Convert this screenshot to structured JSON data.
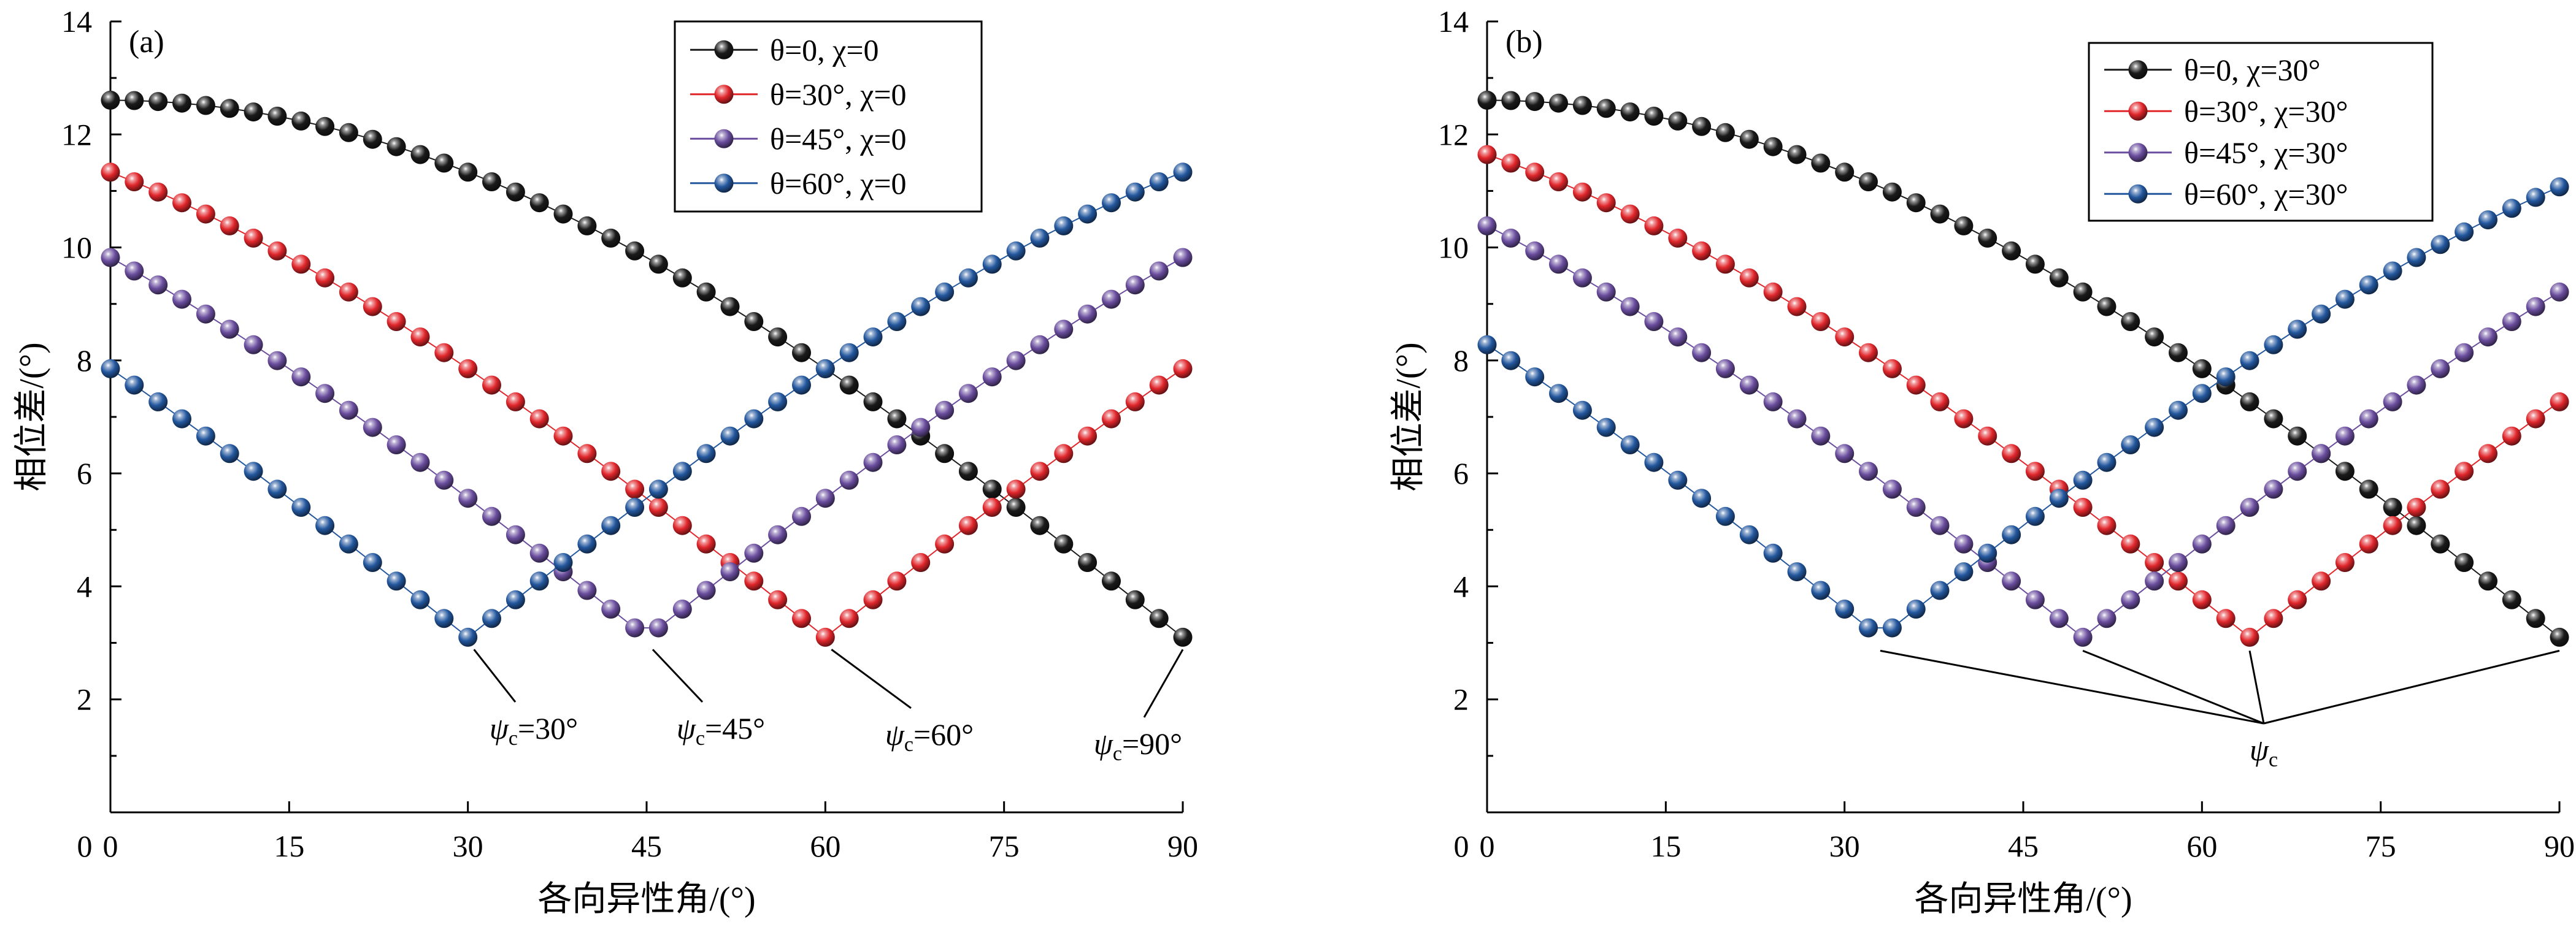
{
  "colors": {
    "black": "#1a1a1a",
    "red": "#e0262b",
    "purple": "#6a4d9e",
    "blue": "#23579e"
  },
  "chart_data": [
    {
      "panel": "(a)",
      "type": "scatter",
      "xlabel": "各向异性角/(°)",
      "ylabel": "相位差/(°)",
      "xlim": [
        0,
        90
      ],
      "ylim": [
        0,
        14
      ],
      "xticks": [
        "0",
        "15",
        "30",
        "45",
        "60",
        "75",
        "90"
      ],
      "yticks": [
        "2",
        "4",
        "6",
        "8",
        "10",
        "12",
        "14"
      ],
      "legend_position": "top-right",
      "series": [
        {
          "name": "θ=0, χ=0",
          "color_key": "black",
          "psi_c": 90
        },
        {
          "name": "θ=30°, χ=0",
          "color_key": "red",
          "psi_c": 60
        },
        {
          "name": "θ=45°, χ=0",
          "color_key": "purple",
          "psi_c": 45
        },
        {
          "name": "θ=60°, χ=0",
          "color_key": "blue",
          "psi_c": 30
        }
      ],
      "annotations": [
        {
          "text": "ψc=30°",
          "x": 30,
          "y": 3.1
        },
        {
          "text": "ψc=45°",
          "x": 45,
          "y": 3.1
        },
        {
          "text": "ψc=60°",
          "x": 60,
          "y": 3.1
        },
        {
          "text": "ψc=90°",
          "x": 90,
          "y": 3.1
        }
      ],
      "curve": {
        "min": 3.1,
        "max": 12.9,
        "x_start": 0,
        "x_end": 90,
        "x_step": 2
      }
    },
    {
      "panel": "(b)",
      "type": "scatter",
      "xlabel": "各向异性角/(°)",
      "ylabel": "相位差/(°)",
      "xlim": [
        0,
        90
      ],
      "ylim": [
        0,
        14
      ],
      "xticks": [
        "0",
        "15",
        "30",
        "45",
        "60",
        "75",
        "90"
      ],
      "yticks": [
        "2",
        "4",
        "6",
        "8",
        "10",
        "12",
        "14"
      ],
      "legend_position": "top-right",
      "series": [
        {
          "name": "θ=0, χ=30°",
          "color_key": "black",
          "psi_c": 90
        },
        {
          "name": "θ=30°, χ=30°",
          "color_key": "red",
          "psi_c": 64
        },
        {
          "name": "θ=45°, χ=30°",
          "color_key": "purple",
          "psi_c": 50
        },
        {
          "name": "θ=60°, χ=30°",
          "color_key": "blue",
          "psi_c": 33
        }
      ],
      "annotations": [
        {
          "text": "ψc",
          "x": 65,
          "y": 1.5
        }
      ],
      "curve": {
        "min": 3.1,
        "max": 12.9,
        "x_start": 0,
        "x_end": 90,
        "x_step": 2
      }
    }
  ]
}
